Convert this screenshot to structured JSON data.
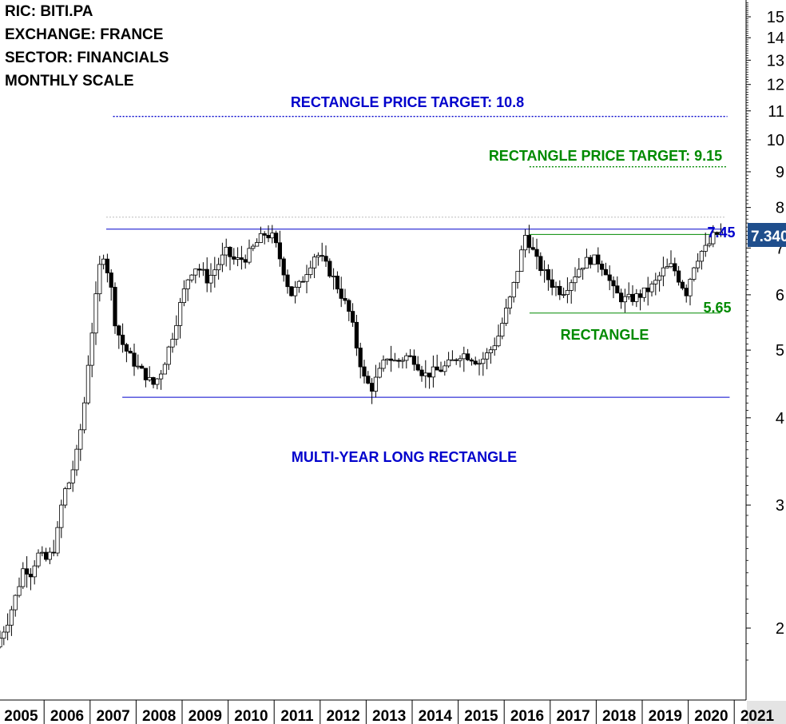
{
  "header": {
    "ric": "RIC: BITI.PA",
    "exchange": "EXCHANGE: FRANCE",
    "sector": "SECTOR: FINANCIALS",
    "scale": "MONTHLY SCALE"
  },
  "annotations": {
    "blue_target": "RECTANGLE PRICE TARGET: 10.8",
    "green_target": "RECTANGLE PRICE TARGET: 9.15",
    "level_745": "7.45",
    "level_565": "5.65",
    "rectangle": "RECTANGLE",
    "multi_year": "MULTI-YEAR LONG RECTANGLE",
    "last_price": "7.340"
  },
  "colors": {
    "blue": "#0000cc",
    "green": "#008a00",
    "price_tag_bg": "#1f4e8c",
    "axis": "#000000"
  },
  "chart_data": {
    "type": "candlestick",
    "scale": "log",
    "ylim": [
      1.75,
      16.2
    ],
    "y_ticks": [
      2,
      3,
      4,
      5,
      6,
      7,
      8,
      9,
      10,
      11,
      12,
      13,
      14,
      15
    ],
    "x_ticks": [
      "2005",
      "2006",
      "2007",
      "2008",
      "2009",
      "2010",
      "2011",
      "2012",
      "2013",
      "2014",
      "2015",
      "2016",
      "2017",
      "2018",
      "2019",
      "2020",
      "2021"
    ],
    "last_price": 7.34,
    "levels": [
      {
        "label": "RECTANGLE PRICE TARGET: 10.8",
        "value": 10.8,
        "color": "blue",
        "style": "dotted",
        "from": 2007.5,
        "to": 2020.85
      },
      {
        "label": "RECTANGLE PRICE TARGET: 9.15",
        "value": 9.15,
        "color": "green",
        "style": "dotted",
        "from": 2016.55,
        "to": 2020.85
      },
      {
        "label": "7.45",
        "value": 7.45,
        "color": "blue",
        "style": "solid",
        "from": 2007.35,
        "to": 2020.8
      },
      {
        "label": "",
        "value": 7.32,
        "color": "green",
        "style": "solid",
        "from": 2016.55,
        "to": 2020.75
      },
      {
        "label": "5.65",
        "value": 5.65,
        "color": "green",
        "style": "solid",
        "from": 2016.55,
        "to": 2020.7
      },
      {
        "label": "",
        "value": 4.28,
        "color": "blue",
        "style": "solid",
        "from": 2007.7,
        "to": 2020.9
      }
    ],
    "price_path": [
      [
        2005.0,
        1.88
      ],
      [
        2005.25,
        2.05
      ],
      [
        2005.45,
        2.25
      ],
      [
        2005.6,
        2.45
      ],
      [
        2005.75,
        2.4
      ],
      [
        2005.9,
        2.55
      ],
      [
        2006.1,
        2.5
      ],
      [
        2006.25,
        2.6
      ],
      [
        2006.35,
        2.78
      ],
      [
        2006.45,
        3.1
      ],
      [
        2006.6,
        3.25
      ],
      [
        2006.75,
        3.55
      ],
      [
        2006.9,
        4.1
      ],
      [
        2007.0,
        4.8
      ],
      [
        2007.15,
        5.8
      ],
      [
        2007.3,
        7.0
      ],
      [
        2007.4,
        6.6
      ],
      [
        2007.5,
        6.1
      ],
      [
        2007.6,
        5.4
      ],
      [
        2007.75,
        5.1
      ],
      [
        2007.9,
        4.9
      ],
      [
        2008.1,
        4.7
      ],
      [
        2008.25,
        4.6
      ],
      [
        2008.4,
        4.45
      ],
      [
        2008.55,
        4.6
      ],
      [
        2008.7,
        4.9
      ],
      [
        2008.85,
        5.3
      ],
      [
        2009.0,
        5.8
      ],
      [
        2009.15,
        6.3
      ],
      [
        2009.3,
        6.6
      ],
      [
        2009.45,
        6.5
      ],
      [
        2009.6,
        6.3
      ],
      [
        2009.8,
        6.6
      ],
      [
        2010.0,
        6.9
      ],
      [
        2010.2,
        6.7
      ],
      [
        2010.45,
        6.8
      ],
      [
        2010.65,
        7.1
      ],
      [
        2010.85,
        7.35
      ],
      [
        2011.0,
        7.25
      ],
      [
        2011.1,
        7.0
      ],
      [
        2011.25,
        6.5
      ],
      [
        2011.4,
        6.0
      ],
      [
        2011.6,
        6.2
      ],
      [
        2011.8,
        6.6
      ],
      [
        2011.95,
        6.9
      ],
      [
        2012.1,
        6.7
      ],
      [
        2012.3,
        6.4
      ],
      [
        2012.5,
        6.0
      ],
      [
        2012.7,
        5.6
      ],
      [
        2012.85,
        5.0
      ],
      [
        2013.0,
        4.55
      ],
      [
        2013.15,
        4.4
      ],
      [
        2013.3,
        4.6
      ],
      [
        2013.5,
        4.9
      ],
      [
        2013.7,
        4.8
      ],
      [
        2013.9,
        4.9
      ],
      [
        2014.1,
        4.85
      ],
      [
        2014.3,
        4.6
      ],
      [
        2014.5,
        4.65
      ],
      [
        2014.7,
        4.7
      ],
      [
        2014.9,
        4.8
      ],
      [
        2015.1,
        4.95
      ],
      [
        2015.3,
        4.9
      ],
      [
        2015.5,
        4.8
      ],
      [
        2015.7,
        4.95
      ],
      [
        2015.9,
        5.2
      ],
      [
        2016.05,
        5.6
      ],
      [
        2016.2,
        6.0
      ],
      [
        2016.35,
        6.6
      ],
      [
        2016.5,
        7.3
      ],
      [
        2016.6,
        7.1
      ],
      [
        2016.75,
        6.7
      ],
      [
        2016.9,
        6.45
      ],
      [
        2017.1,
        6.2
      ],
      [
        2017.3,
        6.05
      ],
      [
        2017.5,
        6.3
      ],
      [
        2017.7,
        6.6
      ],
      [
        2017.9,
        6.75
      ],
      [
        2018.1,
        6.7
      ],
      [
        2018.25,
        6.5
      ],
      [
        2018.4,
        6.1
      ],
      [
        2018.55,
        5.95
      ],
      [
        2018.7,
        5.9
      ],
      [
        2018.9,
        5.95
      ],
      [
        2019.1,
        6.05
      ],
      [
        2019.3,
        6.2
      ],
      [
        2019.5,
        6.5
      ],
      [
        2019.7,
        6.6
      ],
      [
        2019.85,
        6.3
      ],
      [
        2020.0,
        6.05
      ],
      [
        2020.15,
        6.6
      ],
      [
        2020.3,
        6.9
      ],
      [
        2020.45,
        7.0
      ],
      [
        2020.6,
        7.3
      ],
      [
        2020.7,
        7.34
      ]
    ]
  }
}
